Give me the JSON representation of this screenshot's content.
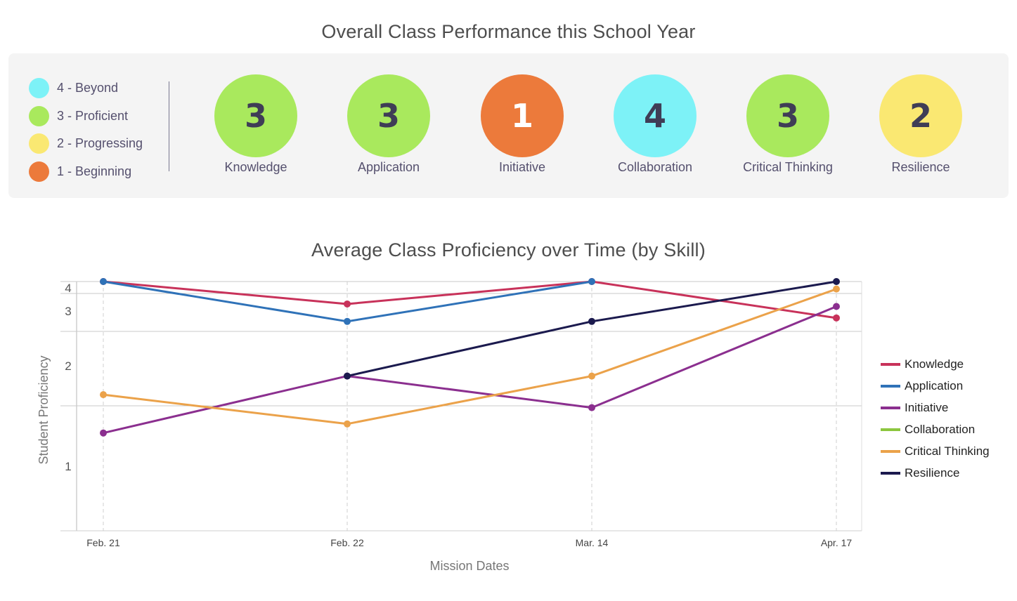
{
  "header": {
    "title": "Overall Class Performance this School Year"
  },
  "rating_legend": [
    {
      "label": "4 - Beyond",
      "color": "#7df2f7"
    },
    {
      "label": "3 - Proficient",
      "color": "#a9e95d"
    },
    {
      "label": "2 - Progressing",
      "color": "#fae872"
    },
    {
      "label": "1 - Beginning",
      "color": "#ec7a3b"
    }
  ],
  "skills": [
    {
      "name": "Knowledge",
      "score": "3",
      "color": "#a9e95d"
    },
    {
      "name": "Application",
      "score": "3",
      "color": "#a9e95d"
    },
    {
      "name": "Initiative",
      "score": "1",
      "color": "#ec7a3b"
    },
    {
      "name": "Collaboration",
      "score": "4",
      "color": "#7df2f7"
    },
    {
      "name": "Critical Thinking",
      "score": "3",
      "color": "#a9e95d"
    },
    {
      "name": "Resilience",
      "score": "2",
      "color": "#fae872"
    }
  ],
  "chart_data": {
    "type": "line",
    "title": "Average Class Proficiency over Time (by Skill)",
    "xlabel": "Mission Dates",
    "ylabel": "Student Proficiency",
    "categories": [
      "Feb. 21",
      "Feb. 22",
      "Mar. 14",
      "Apr. 17"
    ],
    "y_ticks": [
      "1",
      "2",
      "3",
      "4"
    ],
    "ylim": [
      0.7,
      4
    ],
    "grid": true,
    "legend_position": "right",
    "series": [
      {
        "name": "Knowledge",
        "color": "#c8325a",
        "values": [
          4,
          3.55,
          4,
          3.27
        ]
      },
      {
        "name": "Application",
        "color": "#2f72b8",
        "values": [
          4,
          3.2,
          4,
          null
        ]
      },
      {
        "name": "Initiative",
        "color": "#8b2f8f",
        "values": [
          1.55,
          2.4,
          1.97,
          3.5
        ]
      },
      {
        "name": "Collaboration",
        "color": "#8cc63f",
        "values": [
          null,
          null,
          null,
          null
        ]
      },
      {
        "name": "Critical Thinking",
        "color": "#eba24a",
        "values": [
          2.15,
          1.7,
          2.4,
          3.85
        ]
      },
      {
        "name": "Resilience",
        "color": "#1b1a4e",
        "values": [
          null,
          2.4,
          3.2,
          4
        ]
      }
    ]
  }
}
